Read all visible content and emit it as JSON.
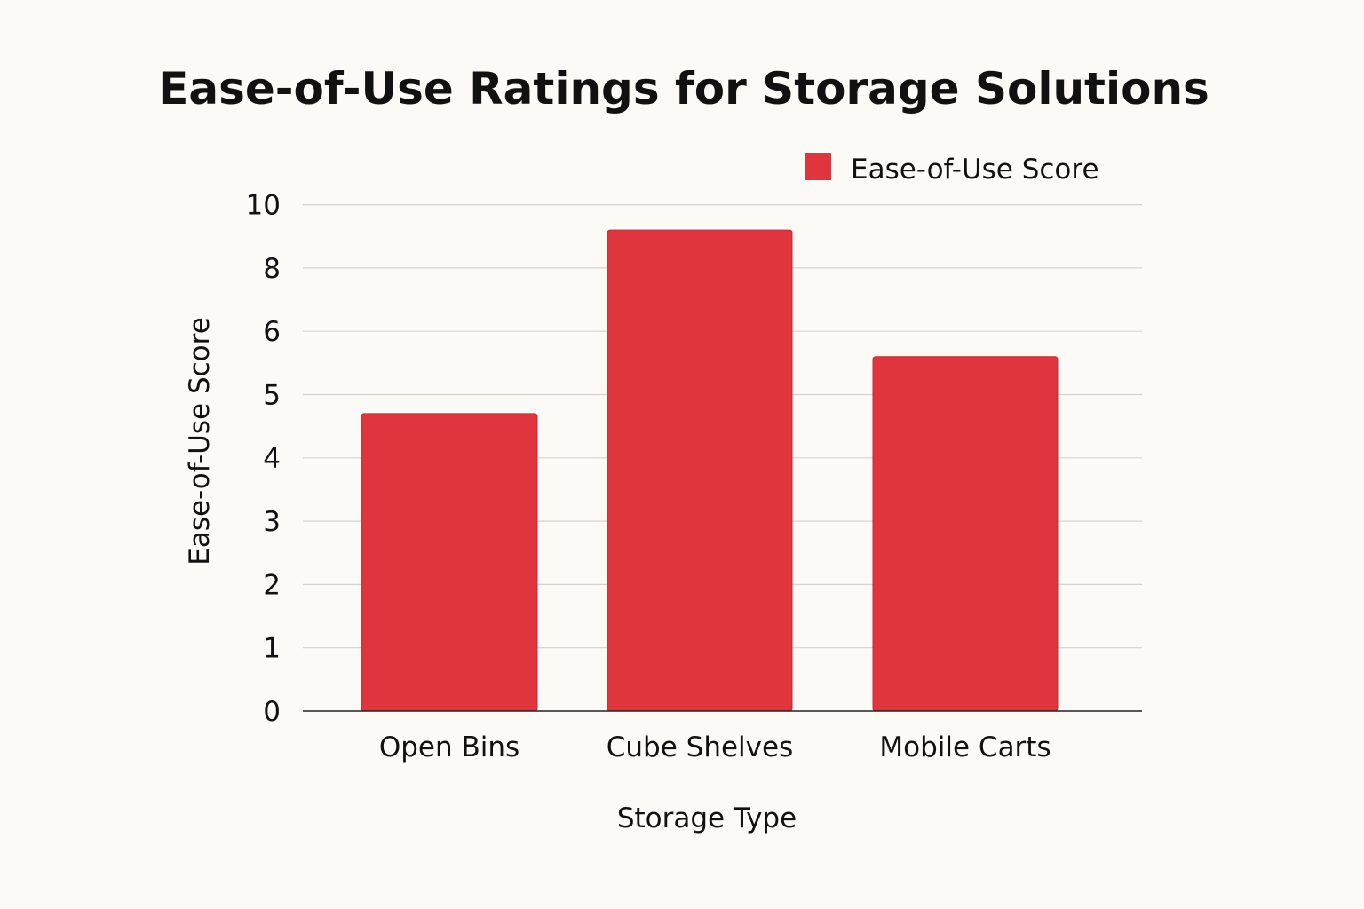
{
  "chart_data": {
    "type": "bar",
    "title": "Ease-of-Use Ratings for Storage Solutions",
    "xlabel": "Storage Type",
    "ylabel": "Ease-of-Use Score",
    "categories": [
      "Open Bins",
      "Cube Shelves",
      "Mobile Carts"
    ],
    "series": [
      {
        "name": "Ease-of-Use Score",
        "values": [
          4.7,
          9.2,
          5.6
        ],
        "color": "#e0353c"
      }
    ],
    "y_ticks": [
      "0",
      "1",
      "2",
      "3",
      "4",
      "5",
      "6",
      "8",
      "10"
    ],
    "ylim": [
      0,
      10
    ],
    "grid": true,
    "legend_position": "top-right"
  }
}
